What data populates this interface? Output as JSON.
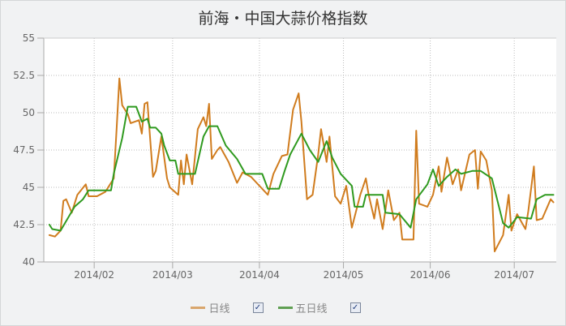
{
  "chart_data": {
    "type": "line",
    "title": "前海・中国大蒜价格指数",
    "xlabel": "",
    "ylabel": "",
    "ylim": [
      40,
      55
    ],
    "xlim": [
      "2014-01-14",
      "2014-07-16"
    ],
    "grid": true,
    "legend_position": "bottom",
    "y_ticks": [
      "40",
      "42.5",
      "45",
      "47.5",
      "50",
      "52.5",
      "55"
    ],
    "x_ticks": [
      {
        "date": "2014-02-01",
        "label": "2014/02"
      },
      {
        "date": "2014-03-01",
        "label": "2014/03"
      },
      {
        "date": "2014-04-01",
        "label": "2014/04"
      },
      {
        "date": "2014-05-01",
        "label": "2014/05"
      },
      {
        "date": "2014-06-01",
        "label": "2014/06"
      },
      {
        "date": "2014-07-01",
        "label": "2014/07"
      }
    ],
    "series": [
      {
        "name": "日线",
        "color": "#d07c1e",
        "checked": true,
        "points": [
          [
            "2014-01-16",
            41.8
          ],
          [
            "2014-01-18",
            41.7
          ],
          [
            "2014-01-20",
            42.1
          ],
          [
            "2014-01-21",
            44.1
          ],
          [
            "2014-01-22",
            44.2
          ],
          [
            "2014-01-24",
            43.3
          ],
          [
            "2014-01-26",
            44.5
          ],
          [
            "2014-01-29",
            45.2
          ],
          [
            "2014-01-30",
            44.4
          ],
          [
            "2014-02-02",
            44.4
          ],
          [
            "2014-02-05",
            44.7
          ],
          [
            "2014-02-08",
            45.6
          ],
          [
            "2014-02-09",
            48.9
          ],
          [
            "2014-02-10",
            52.3
          ],
          [
            "2014-02-11",
            50.5
          ],
          [
            "2014-02-13",
            49.9
          ],
          [
            "2014-02-14",
            49.3
          ],
          [
            "2014-02-17",
            49.5
          ],
          [
            "2014-02-18",
            48.6
          ],
          [
            "2014-02-19",
            50.6
          ],
          [
            "2014-02-20",
            50.7
          ],
          [
            "2014-02-22",
            45.7
          ],
          [
            "2014-02-23",
            46.1
          ],
          [
            "2014-02-25",
            48.4
          ],
          [
            "2014-02-27",
            45.6
          ],
          [
            "2014-02-28",
            45.0
          ],
          [
            "2014-03-03",
            44.5
          ],
          [
            "2014-03-04",
            46.8
          ],
          [
            "2014-03-05",
            45.2
          ],
          [
            "2014-03-06",
            47.2
          ],
          [
            "2014-03-08",
            45.2
          ],
          [
            "2014-03-10",
            48.9
          ],
          [
            "2014-03-12",
            49.7
          ],
          [
            "2014-03-13",
            49.1
          ],
          [
            "2014-03-14",
            50.6
          ],
          [
            "2014-03-15",
            46.9
          ],
          [
            "2014-03-17",
            47.5
          ],
          [
            "2014-03-18",
            47.7
          ],
          [
            "2014-03-21",
            46.7
          ],
          [
            "2014-03-24",
            45.3
          ],
          [
            "2014-03-26",
            46.0
          ],
          [
            "2014-03-29",
            45.7
          ],
          [
            "2014-03-31",
            45.3
          ],
          [
            "2014-04-04",
            44.5
          ],
          [
            "2014-04-06",
            45.9
          ],
          [
            "2014-04-09",
            47.1
          ],
          [
            "2014-04-11",
            47.2
          ],
          [
            "2014-04-13",
            50.2
          ],
          [
            "2014-04-15",
            51.3
          ],
          [
            "2014-04-16",
            49.4
          ],
          [
            "2014-04-18",
            44.2
          ],
          [
            "2014-04-20",
            44.5
          ],
          [
            "2014-04-22",
            47.2
          ],
          [
            "2014-04-23",
            48.9
          ],
          [
            "2014-04-25",
            46.7
          ],
          [
            "2014-04-26",
            48.4
          ],
          [
            "2014-04-28",
            44.4
          ],
          [
            "2014-04-30",
            43.9
          ],
          [
            "2014-05-02",
            45.1
          ],
          [
            "2014-05-04",
            42.3
          ],
          [
            "2014-05-07",
            44.5
          ],
          [
            "2014-05-09",
            45.6
          ],
          [
            "2014-05-10",
            44.5
          ],
          [
            "2014-05-12",
            42.9
          ],
          [
            "2014-05-13",
            44.2
          ],
          [
            "2014-05-15",
            42.2
          ],
          [
            "2014-05-17",
            44.8
          ],
          [
            "2014-05-19",
            42.8
          ],
          [
            "2014-05-21",
            43.3
          ],
          [
            "2014-05-22",
            41.5
          ],
          [
            "2014-05-26",
            41.5
          ],
          [
            "2014-05-27",
            48.8
          ],
          [
            "2014-05-28",
            43.9
          ],
          [
            "2014-05-31",
            43.7
          ],
          [
            "2014-06-02",
            44.5
          ],
          [
            "2014-06-04",
            46.4
          ],
          [
            "2014-06-05",
            44.7
          ],
          [
            "2014-06-07",
            47.0
          ],
          [
            "2014-06-08",
            46.1
          ],
          [
            "2014-06-09",
            45.2
          ],
          [
            "2014-06-11",
            46.2
          ],
          [
            "2014-06-12",
            44.8
          ],
          [
            "2014-06-15",
            47.2
          ],
          [
            "2014-06-17",
            47.5
          ],
          [
            "2014-06-18",
            44.9
          ],
          [
            "2014-06-19",
            47.4
          ],
          [
            "2014-06-21",
            46.8
          ],
          [
            "2014-06-23",
            44.8
          ],
          [
            "2014-06-24",
            40.7
          ],
          [
            "2014-06-27",
            41.8
          ],
          [
            "2014-06-29",
            44.5
          ],
          [
            "2014-06-30",
            42.1
          ],
          [
            "2014-07-02",
            43.2
          ],
          [
            "2014-07-05",
            42.2
          ],
          [
            "2014-07-06",
            43.4
          ],
          [
            "2014-07-08",
            46.4
          ],
          [
            "2014-07-09",
            42.8
          ],
          [
            "2014-07-11",
            42.9
          ],
          [
            "2014-07-14",
            44.2
          ],
          [
            "2014-07-15",
            44.0
          ]
        ]
      },
      {
        "name": "五日线",
        "color": "#2f9a1f",
        "checked": true,
        "points": [
          [
            "2014-01-16",
            42.5
          ],
          [
            "2014-01-17",
            42.2
          ],
          [
            "2014-01-20",
            42.1
          ],
          [
            "2014-01-25",
            43.7
          ],
          [
            "2014-01-28",
            44.2
          ],
          [
            "2014-01-30",
            44.8
          ],
          [
            "2014-02-07",
            44.8
          ],
          [
            "2014-02-08",
            45.9
          ],
          [
            "2014-02-11",
            48.3
          ],
          [
            "2014-02-13",
            50.4
          ],
          [
            "2014-02-16",
            50.4
          ],
          [
            "2014-02-18",
            49.4
          ],
          [
            "2014-02-20",
            49.6
          ],
          [
            "2014-02-21",
            49.0
          ],
          [
            "2014-02-23",
            49.0
          ],
          [
            "2014-02-25",
            48.6
          ],
          [
            "2014-02-26",
            47.8
          ],
          [
            "2014-02-28",
            46.8
          ],
          [
            "2014-03-02",
            46.8
          ],
          [
            "2014-03-03",
            45.9
          ],
          [
            "2014-03-09",
            45.9
          ],
          [
            "2014-03-12",
            48.4
          ],
          [
            "2014-03-14",
            49.1
          ],
          [
            "2014-03-17",
            49.1
          ],
          [
            "2014-03-20",
            47.8
          ],
          [
            "2014-03-24",
            46.9
          ],
          [
            "2014-03-27",
            45.9
          ],
          [
            "2014-04-02",
            45.9
          ],
          [
            "2014-04-04",
            44.9
          ],
          [
            "2014-04-08",
            44.9
          ],
          [
            "2014-04-10",
            46.1
          ],
          [
            "2014-04-12",
            47.2
          ],
          [
            "2014-04-16",
            48.6
          ],
          [
            "2014-04-19",
            47.5
          ],
          [
            "2014-04-22",
            46.7
          ],
          [
            "2014-04-25",
            48.1
          ],
          [
            "2014-04-27",
            47.0
          ],
          [
            "2014-04-30",
            45.9
          ],
          [
            "2014-05-04",
            45.1
          ],
          [
            "2014-05-05",
            43.7
          ],
          [
            "2014-05-08",
            43.7
          ],
          [
            "2014-05-09",
            44.5
          ],
          [
            "2014-05-15",
            44.5
          ],
          [
            "2014-05-16",
            43.3
          ],
          [
            "2014-05-21",
            43.2
          ],
          [
            "2014-05-25",
            42.3
          ],
          [
            "2014-05-27",
            44.2
          ],
          [
            "2014-05-31",
            45.2
          ],
          [
            "2014-06-02",
            46.2
          ],
          [
            "2014-06-04",
            45.1
          ],
          [
            "2014-06-07",
            45.7
          ],
          [
            "2014-06-10",
            46.2
          ],
          [
            "2014-06-12",
            45.9
          ],
          [
            "2014-06-16",
            46.1
          ],
          [
            "2014-06-19",
            46.1
          ],
          [
            "2014-06-23",
            45.6
          ],
          [
            "2014-06-27",
            42.6
          ],
          [
            "2014-06-29",
            42.3
          ],
          [
            "2014-07-02",
            43.0
          ],
          [
            "2014-07-07",
            42.9
          ],
          [
            "2014-07-09",
            44.2
          ],
          [
            "2014-07-12",
            44.5
          ],
          [
            "2014-07-15",
            44.5
          ]
        ]
      }
    ]
  }
}
